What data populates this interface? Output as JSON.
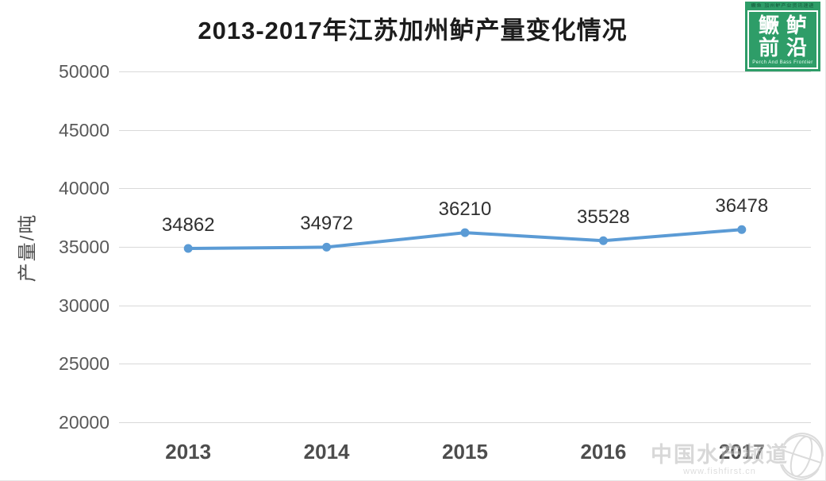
{
  "title": "2013-2017年江苏加州鲈产量变化情况",
  "logo": {
    "tagline_top": "鳜鱼 加州鲈产业资讯速递",
    "line1": "鳜鲈",
    "line2": "前沿",
    "tagline_bottom": "Perch And Bass Frontier",
    "bg_color": "#2E9D68"
  },
  "watermark": {
    "text": "中国水产频道",
    "url": "www.fishfirst.cn"
  },
  "chart_data": {
    "type": "line",
    "title": "2013-2017年江苏加州鲈产量变化情况",
    "categories": [
      "2013",
      "2014",
      "2015",
      "2016",
      "2017"
    ],
    "values": [
      34862,
      34972,
      36210,
      35528,
      36478
    ],
    "xlabel": "",
    "ylabel": "产量/吨",
    "ylim": [
      20000,
      50000
    ],
    "yticks": [
      50000,
      45000,
      40000,
      35000,
      30000,
      25000,
      20000
    ],
    "grid": true,
    "legend": "none",
    "data_labels": true,
    "line_color": "#5B9BD5",
    "marker": "circle",
    "grid_color": "#d9d9d9",
    "tick_color": "#595959"
  }
}
